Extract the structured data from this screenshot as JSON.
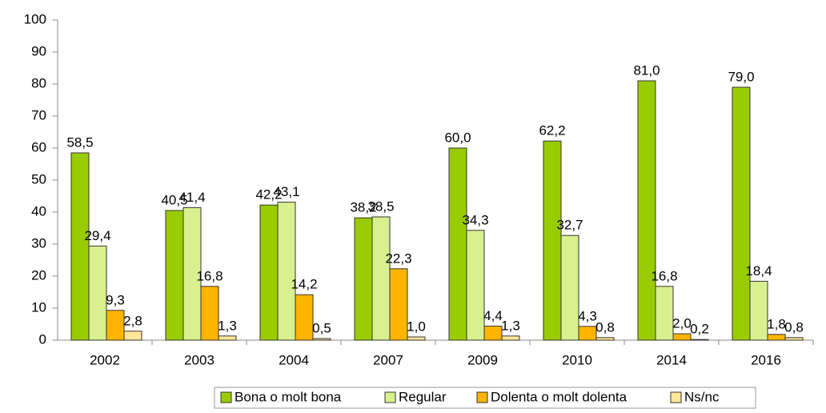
{
  "chart_data": {
    "type": "bar",
    "categories": [
      "2002",
      "2003",
      "2004",
      "2007",
      "2009",
      "2010",
      "2014",
      "2016"
    ],
    "series": [
      {
        "name": "Bona o molt bona",
        "color": "#99cc00",
        "values": [
          58.5,
          40.5,
          42.2,
          38.2,
          60.0,
          62.2,
          81.0,
          79.0
        ],
        "value_labels": [
          "58,5",
          "40,5",
          "42,2",
          "38,2",
          "60,0",
          "62,2",
          "81,0",
          "79,0"
        ]
      },
      {
        "name": "Regular",
        "color": "#d9f08f",
        "values": [
          29.4,
          41.4,
          43.1,
          38.5,
          34.3,
          32.7,
          16.8,
          18.4
        ],
        "value_labels": [
          "29,4",
          "41,4",
          "43,1",
          "38,5",
          "34,3",
          "32,7",
          "16,8",
          "18,4"
        ]
      },
      {
        "name": "Dolenta o molt dolenta",
        "color": "#ffb400",
        "values": [
          9.3,
          16.8,
          14.2,
          22.3,
          4.4,
          4.3,
          2.0,
          1.8
        ],
        "value_labels": [
          "9,3",
          "16,8",
          "14,2",
          "22,3",
          "4,4",
          "4,3",
          "2,0",
          "1,8"
        ]
      },
      {
        "name": "Ns/nc",
        "color": "#ffe699",
        "values": [
          2.8,
          1.3,
          0.5,
          1.0,
          1.3,
          0.8,
          0.2,
          0.8
        ],
        "value_labels": [
          "2,8",
          "1,3",
          "0,5",
          "1,0",
          "1,3",
          "0,8",
          "0,2",
          "0,8"
        ]
      }
    ],
    "ylim": [
      0,
      100
    ],
    "yticks": [
      0,
      10,
      20,
      30,
      40,
      50,
      60,
      70,
      80,
      90,
      100
    ],
    "grid": false,
    "legend": "bottom"
  }
}
